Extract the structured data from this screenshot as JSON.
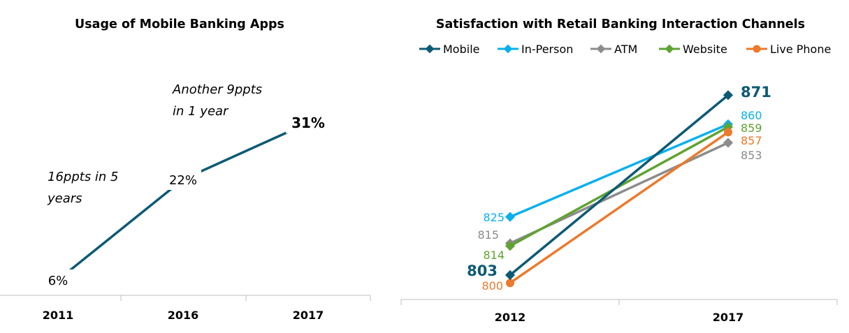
{
  "chart_data": [
    {
      "type": "line",
      "title": "Usage of Mobile Banking Apps",
      "categories": [
        "2011",
        "2016",
        "2017"
      ],
      "series": [
        {
          "values": [
            6,
            22,
            31
          ],
          "labels": [
            "6%",
            "22%",
            "31%"
          ],
          "color": "#0d5a75"
        }
      ],
      "annotations": [
        "16ppts in 5",
        "years",
        "Another 9ppts",
        "in 1 year"
      ],
      "ylim": [
        0,
        40
      ],
      "xlabel": "",
      "ylabel": "",
      "grid": false
    },
    {
      "type": "line",
      "title": "Satisfaction with Retail Banking Interaction Channels",
      "categories": [
        "2012",
        "2017"
      ],
      "legend_position": "top",
      "ylim": [
        790,
        880
      ],
      "grid": false,
      "series": [
        {
          "name": "Mobile",
          "values": [
            803,
            871
          ],
          "color": "#0d5a75",
          "marker": "diamond"
        },
        {
          "name": "In-Person",
          "values": [
            825,
            860
          ],
          "color": "#0ab0ec",
          "marker": "diamond"
        },
        {
          "name": "ATM",
          "values": [
            815,
            853
          ],
          "color": "#8c8c8c",
          "marker": "diamond"
        },
        {
          "name": "Website",
          "values": [
            814,
            859
          ],
          "color": "#5fa332",
          "marker": "diamond"
        },
        {
          "name": "Live Phone",
          "values": [
            800,
            857
          ],
          "color": "#ec7a2c",
          "marker": "circle"
        }
      ]
    }
  ]
}
